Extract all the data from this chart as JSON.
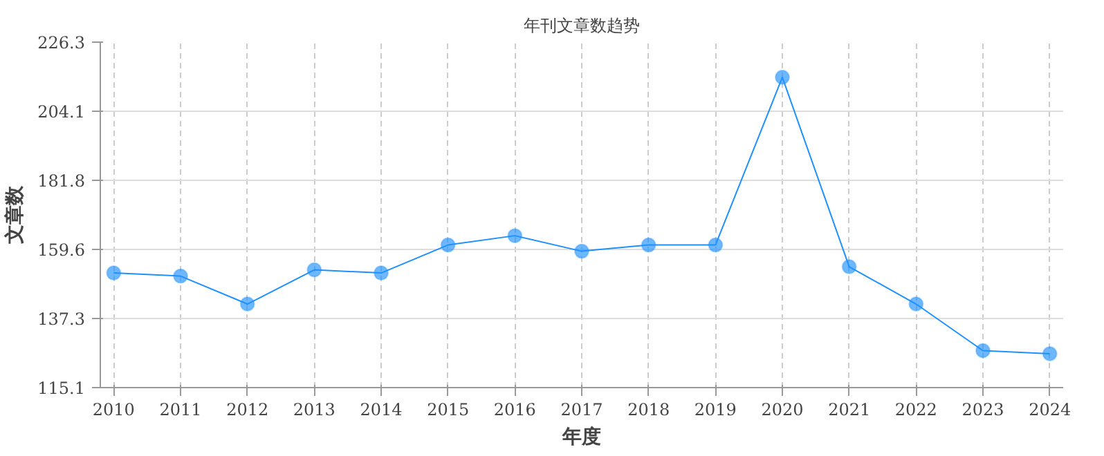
{
  "chart_data": {
    "type": "line",
    "title": "年刊文章数趋势",
    "xlabel": "年度",
    "ylabel": "文章数",
    "categories": [
      "2010",
      "2011",
      "2012",
      "2013",
      "2014",
      "2015",
      "2016",
      "2017",
      "2018",
      "2019",
      "2020",
      "2021",
      "2022",
      "2023",
      "2024"
    ],
    "series": [
      {
        "color": "#1e90ff",
        "values": [
          152,
          151,
          142,
          153,
          152,
          161,
          164,
          159,
          161,
          161,
          215,
          154,
          142,
          127,
          126
        ]
      }
    ],
    "ylim": [
      115.1,
      226.3
    ],
    "yticks": [
      115.1,
      137.3,
      159.6,
      181.8,
      204.1,
      226.3
    ],
    "grid": true,
    "marker": "circle",
    "line_style": "solid"
  }
}
